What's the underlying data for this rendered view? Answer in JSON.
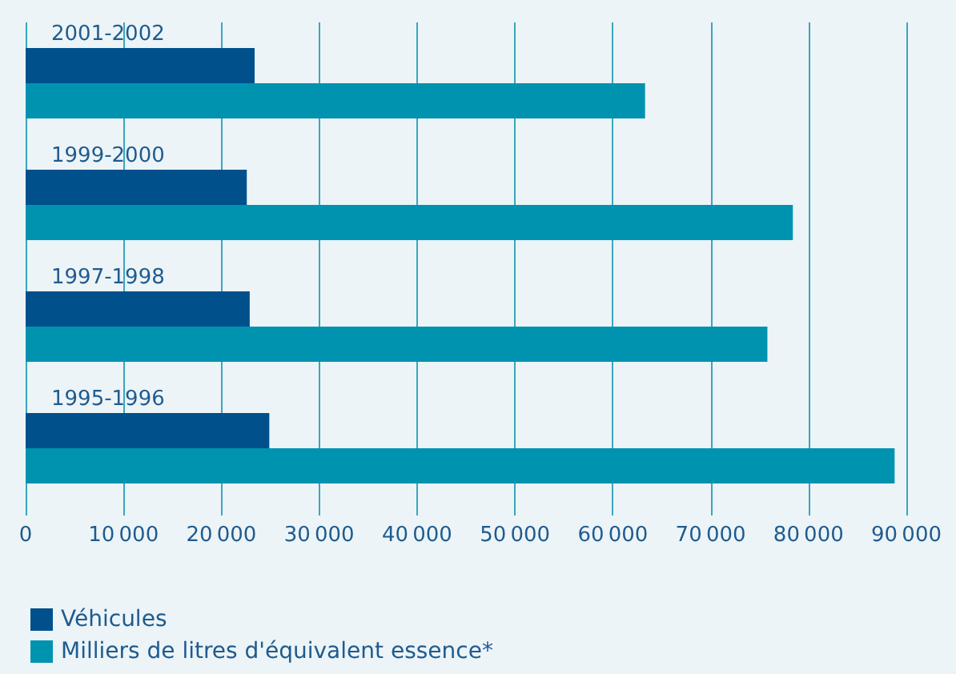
{
  "chart_data": {
    "type": "bar",
    "orientation": "horizontal",
    "categories": [
      "2001-2002",
      "1999-2000",
      "1997-1998",
      "1995-1996"
    ],
    "series": [
      {
        "name": "Véhicules",
        "color": "#00508c",
        "values": [
          23400,
          22600,
          22900,
          24900
        ]
      },
      {
        "name": "Milliers de litres d'équivalent essence*",
        "color": "#0093b0",
        "values": [
          63300,
          78400,
          75800,
          88800
        ]
      }
    ],
    "xlim": [
      0,
      90000
    ],
    "xticks": [
      0,
      10000,
      20000,
      30000,
      40000,
      50000,
      60000,
      70000,
      80000,
      90000
    ],
    "grid": "x",
    "legend": "bottom left"
  }
}
